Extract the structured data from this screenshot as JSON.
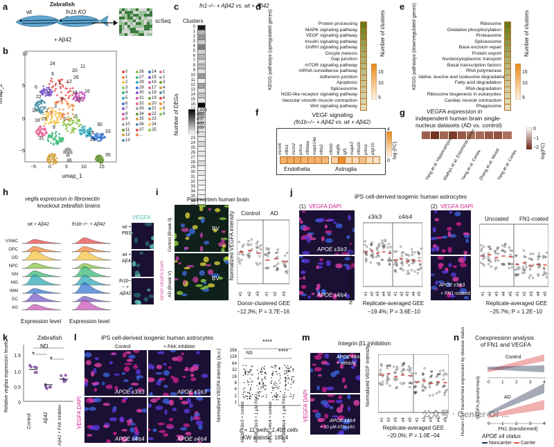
{
  "panel_letters": [
    "a",
    "b",
    "c",
    "d",
    "e",
    "f",
    "g",
    "h",
    "i",
    "j",
    "k",
    "l",
    "m",
    "n"
  ],
  "a": {
    "title": "Zebrafish",
    "wt": "wt",
    "ko": "fn1b KO",
    "treat": "+ Aβ42",
    "scseq": "scSeq"
  },
  "b": {
    "xlabel": "umap_1",
    "ylabel": "umap_2",
    "xticks": [
      "−5",
      "0",
      "5",
      "10",
      "15"
    ],
    "yticks": [
      "10",
      "5",
      "0",
      "−5"
    ],
    "legend_col1": [
      "0",
      "1",
      "2",
      "3",
      "4",
      "5",
      "6",
      "7",
      "8",
      "9",
      "10",
      "11",
      "12",
      "13"
    ],
    "legend_col2": [
      "26",
      "27",
      "28",
      "29",
      "30",
      "31",
      "32",
      "33",
      "34",
      "35",
      "36",
      "37",
      "..."
    ],
    "legend_col3": [
      "14",
      "15",
      "16",
      "17",
      "18",
      "19",
      "20",
      "21",
      "22",
      "23",
      "24",
      "25"
    ],
    "legend_col4": [
      "1",
      "2",
      "3",
      "4",
      "5",
      "6",
      "7",
      "8",
      "9"
    ],
    "cluster_labels": [
      "9",
      "6",
      "26",
      "12",
      "1",
      "22",
      "4",
      "13",
      "16",
      "7",
      "3",
      "2",
      "10",
      "19",
      "18",
      "15",
      "0",
      "5",
      "33",
      "14",
      "25",
      "8",
      "31",
      "36",
      "35",
      "20",
      "24",
      "11",
      "30"
    ]
  },
  "c": {
    "title": "fn1−/− + Aβ42 vs. wt + Aβ42",
    "clusters_label": "Clusters",
    "clusters": [
      "0",
      "1",
      "2",
      "3",
      "4",
      "5",
      "6",
      "7",
      "8",
      "9",
      "10",
      "11",
      "12",
      "13",
      "14",
      "15",
      "16",
      "17",
      "18",
      "19",
      "20",
      "21",
      "22",
      "23",
      "24",
      "25",
      "26",
      "27",
      "28",
      "29",
      "30",
      "31",
      "32",
      "33",
      "34",
      "35",
      "36",
      "37"
    ],
    "legend_title": "Number of DEGs",
    "legend_ticks": [
      "1,000",
      "800",
      "600",
      "400",
      "200",
      "0"
    ]
  },
  "d": {
    "ylabel": "KEGG pathways (upregulated genes)",
    "legend_title": "Number of clusters",
    "legend_ticks": [
      "15",
      "10",
      "5"
    ],
    "items": [
      "Protein processing",
      "MAPK signaling pathway",
      "VEGF signaling pathway",
      "Insulin signaling pathway",
      "GnRH signaling pathway",
      "Oocyte meiosis",
      "Gap junction",
      "mTOR signaling pathway",
      "mRNA surveillance pathway",
      "Adherens junction",
      "Apoptosis",
      "Spliceosome",
      "NOD-like receptor signaling pathway",
      "Vascular smooth muscle contraction",
      "Wnt signaling pathway"
    ]
  },
  "e": {
    "ylabel": "KEGG pathways (downregulated genes)",
    "legend_title": "Number of clusters",
    "legend_ticks": [
      "15",
      "10",
      "5"
    ],
    "items": [
      "Ribosome",
      "Oxidative phosphorylation",
      "Proteasome",
      "Spliceosome",
      "Base excision repair",
      "Protein export",
      "Nucleocytoplasmic transport",
      "Basal transcription factors",
      "RNA polymerase",
      "Valine, leucine and isoleucine degradation",
      "Fatty acid degradation",
      "RNA degradation",
      "Ribosome biogenesis in eukaryotes",
      "Cardiac muscle contraction",
      "Phagosome"
    ]
  },
  "f": {
    "title": "VEGF signaling",
    "subtitle": "(fn1b−/− + Aβ42 vs. wt + Aβ42)",
    "genes_endo": [
      "mcm6",
      "nfkb1",
      "mcm2",
      "prkca",
      "nfkbiaa",
      "mapk14a",
      "nfkb2"
    ],
    "genes_astro": [
      "nfkbib",
      "vegfa",
      "igf1",
      "mapk3",
      "nfkb2b",
      "prkca",
      "ptgr1b"
    ],
    "group1": "Endothelia",
    "group2": "Astroglia",
    "legend_title": "log (FC)",
    "legend_ticks": [
      "4",
      "0"
    ]
  },
  "g": {
    "title": "VEGFA expression in",
    "title2": "independent human brain single-",
    "title3": "nucleus datasets (AD vs. control)",
    "datasets": [
      "Yang et al. Hippocampus",
      "Mathys et al. Entorhinal cortex",
      "Yang et al. Cortex",
      "Zhang et al. Mixed",
      "Yang et al. Cortex"
    ],
    "legend_title": "log(FC)",
    "legend_ticks": [
      "0",
      "−1",
      "−2"
    ]
  },
  "h": {
    "title": "vegfa expression in fibronectin",
    "title2": "knockout zebrafish brains",
    "group1": "wt + Aβ42",
    "group2": "fn1b−/− + Aβ42",
    "xlabel": "Expression level",
    "celltypes": [
      "VSMC",
      "OPC",
      "OD",
      "NPC",
      "NN",
      "MG",
      "IMM",
      "EC",
      "AG"
    ],
    "stain": "VEGFA",
    "row1": "wt + PBS",
    "row2": "wt + Aβ42",
    "row3": "fn1b−/− + Aβ42"
  },
  "i": {
    "title": "Postmortem human brain",
    "row_ctrl": "Control (Braak 0)",
    "row_ad": "AD (Braak V)",
    "stain": "GFAP VEGFA DAPI",
    "bv": "BV",
    "ylabel": "Normalized VEGFA intensity",
    "groups": [
      "Control",
      "AD"
    ],
    "xticks": [
      "#1",
      "#2",
      "#3",
      "#1",
      "#2",
      "#3"
    ],
    "xlabel": "Donor-clustered GEE",
    "stat": "−12.3%; P = 3.7E−16"
  },
  "j": {
    "title": "iPS cell-derived isogenic human astrocytes",
    "sub1": "(1)",
    "sub2": "(2)",
    "stain": "VEGFA DAPI",
    "img1": "APOE ε3/ε3",
    "img2": "APOE ε4/ε4",
    "img3": "APOE ε3/ε3",
    "img3b": "+ FN1-coated",
    "ylabel": "Normalized VEGFA intensity",
    "groups1": [
      "ε3/ε3",
      "ε4/ε4"
    ],
    "groups2": [
      "Uncoated",
      "FN1-coated"
    ],
    "xticks": [
      "#1",
      "#2",
      "#3",
      "#4",
      "#5",
      "#1",
      "#2",
      "#3",
      "#4",
      "#5"
    ],
    "xlabel": "Replicate-averaged GEE",
    "stat1": "−19.4%; P = 3.6E−10",
    "stat2": "−25.7%; P = 1.2E−10"
  },
  "k": {
    "title": "Zebrafish",
    "ylabel": "Relative vegfaa expression levels",
    "nd": "ND",
    "star": "*",
    "yticks": [
      "1.5",
      "1.0",
      "0.5",
      "0"
    ],
    "xticks": [
      "Control",
      "Aβ42",
      "Aβ42 + FAK inhibitor"
    ]
  },
  "l": {
    "title": "iPS cell-derived isogenic human astrocytes",
    "col1": "Control",
    "col2": "+ FAK inhibitor",
    "img1": "APOE ε3/ε3",
    "img2": "APOE ε3/ε3",
    "img3": "APOE ε4/ε4",
    "img4": "APOE ε4/ε4",
    "stain": "VEGFA DAPI",
    "ylabel": "Normalized VEGFA intensity (a.u.)",
    "yticks": [
      "256",
      "128",
      "64",
      "32",
      "16",
      "8",
      "4",
      "2",
      "1"
    ],
    "ns": "NS",
    "sig": "****",
    "xticks": [
      "APOE ε3/ε3 + control",
      "APOE ε3/ε3 + 1 μM FAKi",
      "APOE ε4/ε4 + control",
      "APOE ε4/ε4 + 1 μM FAKi"
    ],
    "n": "n = 11 wells; 1,408 cells",
    "kw": "KW statistic: 185.4"
  },
  "m": {
    "title": "Integrin β1 inhibition",
    "img1": "APOE ε4/ε4",
    "img1b": "+ vehicle",
    "img2": "APOE ε4/ε4",
    "img2b": "+ 10 μM ATN-161",
    "stain": "VEGFA DAPI",
    "ylabel": "Normalized VEGF intensity",
    "xticks": [
      "#1",
      "#2",
      "#3",
      "#4",
      "#5",
      "#1",
      "#2",
      "#3",
      "#4",
      "#5"
    ],
    "xlabel": "Replicate-averaged GEE",
    "stat": "−20.0%; P = 1.0E−04"
  },
  "n": {
    "title": "Coexpression analysis",
    "title2": "of FN1 and VEGFA",
    "ylabel": "Human CSF transformed expression by disease status",
    "ylabel2": "VEGFA (transformed)",
    "ctrl": "Control",
    "ad": "AD",
    "xticks": [
      "0",
      "1",
      "2",
      "3",
      "4"
    ],
    "xlabel": "FN1 (transformed)",
    "status": "APOE ε4 status",
    "leg1": "Noncarrier",
    "leg2": "Carrier"
  },
  "watermark": "公众号 · Center-Of ...",
  "colors": {
    "orange": "#f0a030",
    "navy": "#1d2a4a",
    "magenta": "#c8208c",
    "red": "#d83838",
    "dark": "#1a1033"
  }
}
